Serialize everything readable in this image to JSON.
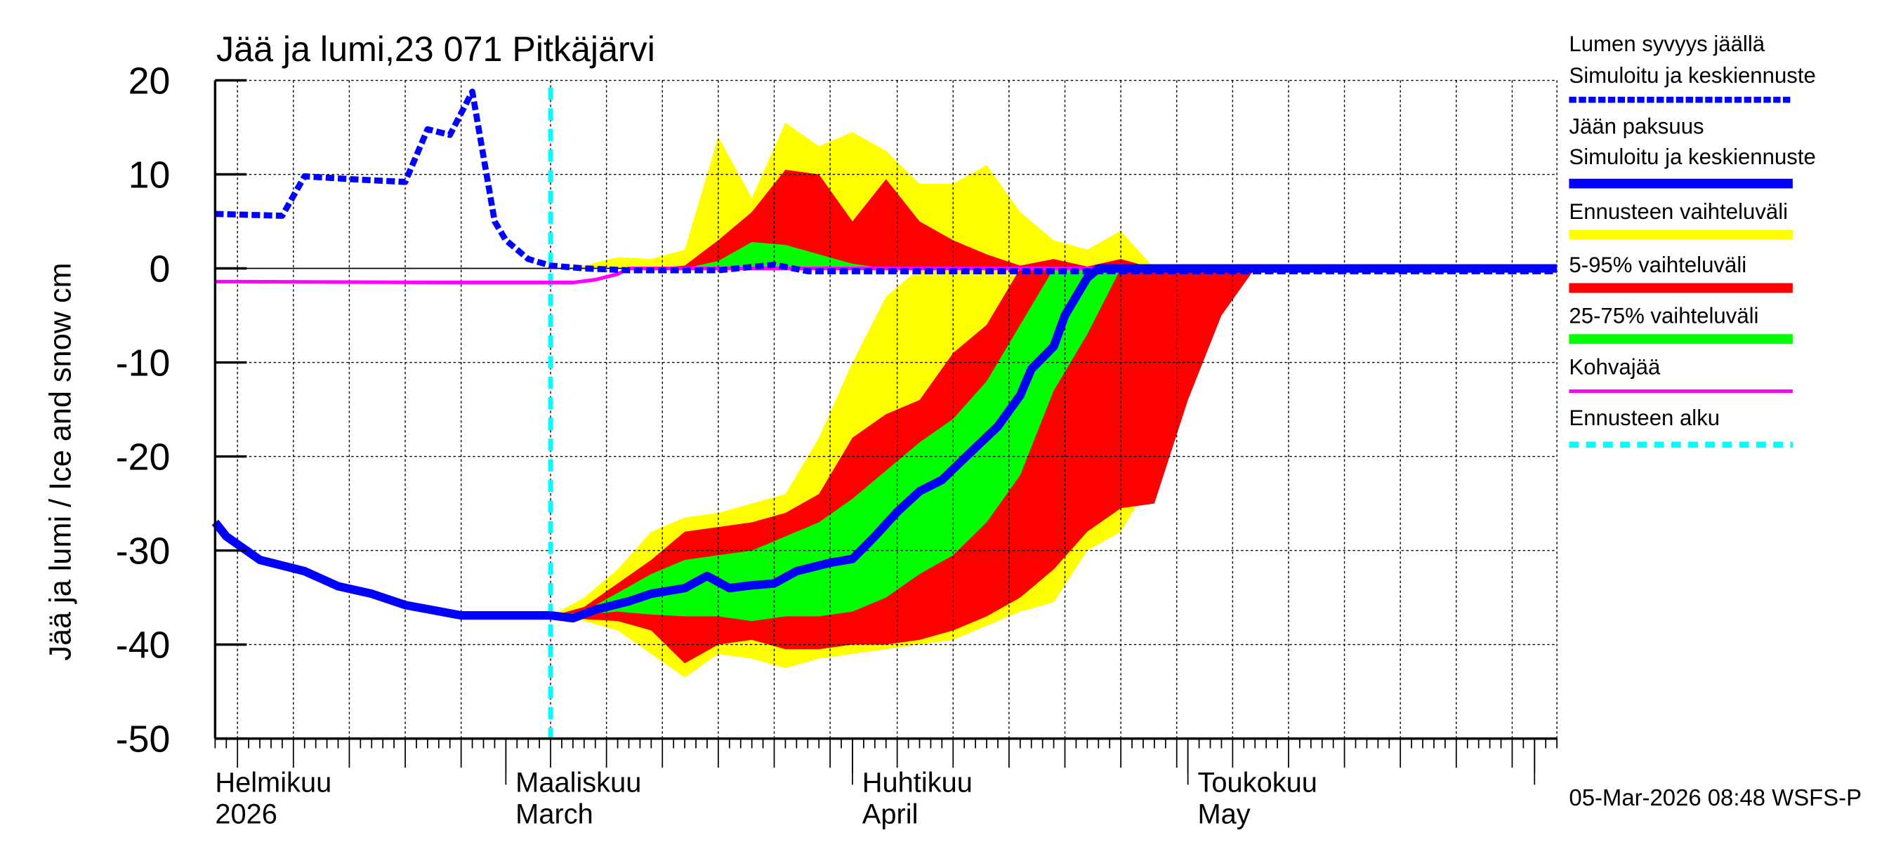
{
  "chart_data": {
    "type": "area",
    "title": "Jää ja lumi,23 071 Pitkäjärvi",
    "ylabel": "Jää ja lumi / Ice and snow    cm",
    "xlabel": "",
    "ylim": [
      -50,
      20
    ],
    "yticks": [
      20,
      10,
      0,
      -10,
      -20,
      -30,
      -40,
      -50
    ],
    "xlim": [
      "2026-02-03",
      "2026-06-03"
    ],
    "grid": true,
    "month_labels": [
      {
        "date": "2026-02-01",
        "fi": "Helmikuu",
        "en": "2026"
      },
      {
        "date": "2026-03-01",
        "fi": "Maaliskuu",
        "en": "March"
      },
      {
        "date": "2026-04-01",
        "fi": "Huhtikuu",
        "en": "April"
      },
      {
        "date": "2026-05-01",
        "fi": "Toukokuu",
        "en": "May"
      }
    ],
    "forecast_start": "2026-03-05",
    "colors": {
      "snow": "#0000ff",
      "ice": "#0000ff",
      "range": "#ffff00",
      "p5_95": "#ff0000",
      "p25_75": "#00ff00",
      "slush": "#ff00ff",
      "forecast_start": "#00ffff"
    },
    "forecast_dates": [
      "2026-03-05",
      "2026-03-08",
      "2026-03-11",
      "2026-03-14",
      "2026-03-17",
      "2026-03-20",
      "2026-03-23",
      "2026-03-26",
      "2026-03-29",
      "2026-04-01",
      "2026-04-04",
      "2026-04-07",
      "2026-04-10",
      "2026-04-13",
      "2026-04-16",
      "2026-04-19",
      "2026-04-22",
      "2026-04-25",
      "2026-04-28",
      "2026-05-01",
      "2026-05-04",
      "2026-05-07"
    ],
    "snow_bands": {
      "range_upper": [
        0,
        0.3,
        1.2,
        1,
        2,
        14,
        7.5,
        15.5,
        13,
        14.5,
        12.5,
        9,
        9,
        11,
        6,
        3,
        2,
        4,
        0,
        0,
        0,
        0
      ],
      "p5_95_upper": [
        0,
        0,
        0,
        0,
        0.3,
        3,
        6,
        10.5,
        10,
        5,
        9.5,
        5,
        3,
        1.5,
        0.3,
        1,
        0.2,
        1,
        0,
        0,
        0,
        0
      ],
      "p25_75_upper": [
        0,
        0,
        0,
        0,
        0,
        0.8,
        2.8,
        2.5,
        1.5,
        0.5,
        0,
        0,
        0,
        0,
        0,
        0,
        0,
        0,
        0,
        0,
        0,
        0
      ]
    },
    "ice_bands": {
      "range_upper": [
        -37,
        -35,
        -32,
        -28,
        -26.5,
        -26,
        -25,
        -24,
        -18,
        -10,
        -3,
        0,
        0,
        0,
        0,
        0,
        0,
        0,
        0,
        0,
        0,
        0
      ],
      "range_lower": [
        -37,
        -37.5,
        -38.5,
        -41,
        -43.5,
        -41,
        -41.5,
        -42.5,
        -41.5,
        -41,
        -40.5,
        -40,
        -39.5,
        -38,
        -36.5,
        -35.5,
        -30,
        -28,
        -22,
        -12,
        -4,
        0
      ],
      "p5_95_upper": [
        -37,
        -36,
        -33.5,
        -31,
        -28,
        -27.5,
        -27,
        -26,
        -24,
        -18,
        -15.5,
        -14,
        -9,
        -6,
        0,
        0,
        0,
        0,
        0,
        0,
        0,
        0
      ],
      "p5_95_lower": [
        -37,
        -37.3,
        -37.5,
        -38.5,
        -42,
        -40,
        -39.5,
        -40.5,
        -40.5,
        -40,
        -40,
        -39.5,
        -38.5,
        -37,
        -35,
        -32,
        -28,
        -25.5,
        -25,
        -14,
        -5,
        0
      ],
      "p25_75_upper": [
        -37,
        -36.5,
        -34.5,
        -32.5,
        -31,
        -30.5,
        -30,
        -28.5,
        -27,
        -24.5,
        -21.5,
        -18.5,
        -16,
        -12,
        -6,
        0,
        0,
        0,
        0,
        0,
        0,
        0
      ],
      "p25_75_lower": [
        -37,
        -36.8,
        -36.5,
        -36.8,
        -37,
        -37,
        -37.5,
        -37,
        -37,
        -36.5,
        -35,
        -32.5,
        -30.5,
        -27,
        -22,
        -13,
        -7,
        0,
        0,
        0,
        0,
        0
      ]
    },
    "series": [
      {
        "name": "Lumen syvyys jäällä",
        "style": "dashed",
        "x": [
          "2026-02-03",
          "2026-02-09",
          "2026-02-11",
          "2026-02-15",
          "2026-02-20",
          "2026-02-22",
          "2026-02-24",
          "2026-02-26",
          "2026-02-28",
          "2026-03-01",
          "2026-03-03",
          "2026-03-05",
          "2026-03-08",
          "2026-03-12",
          "2026-03-20",
          "2026-03-25",
          "2026-03-28",
          "2026-06-03"
        ],
        "y": [
          5.8,
          5.6,
          9.8,
          9.5,
          9.2,
          14.8,
          14.2,
          18.8,
          5,
          3,
          1,
          0.3,
          0,
          -0.2,
          -0.2,
          0.4,
          -0.3,
          -0.3
        ]
      },
      {
        "name": "Jään paksuus",
        "style": "solid",
        "x": [
          "2026-02-03",
          "2026-02-04",
          "2026-02-07",
          "2026-02-11",
          "2026-02-14",
          "2026-02-17",
          "2026-02-20",
          "2026-02-25",
          "2026-03-05",
          "2026-03-07",
          "2026-03-09",
          "2026-03-12",
          "2026-03-14",
          "2026-03-17",
          "2026-03-19",
          "2026-03-21",
          "2026-03-23",
          "2026-03-25",
          "2026-03-27",
          "2026-03-30",
          "2026-04-01",
          "2026-04-03",
          "2026-04-05",
          "2026-04-07",
          "2026-04-09",
          "2026-04-11",
          "2026-04-14",
          "2026-04-16",
          "2026-04-17",
          "2026-04-19",
          "2026-04-20",
          "2026-04-22",
          "2026-04-23",
          "2026-06-03"
        ],
        "y": [
          -27,
          -28.5,
          -31,
          -32.2,
          -33.8,
          -34.6,
          -35.8,
          -36.9,
          -36.9,
          -37.2,
          -36.3,
          -35.4,
          -34.6,
          -34,
          -32.7,
          -34,
          -33.7,
          -33.5,
          -32.2,
          -31.3,
          -30.9,
          -28.5,
          -25.9,
          -23.7,
          -22.5,
          -20.2,
          -16.8,
          -13.5,
          -10.7,
          -8.3,
          -5,
          -1,
          0,
          0
        ]
      },
      {
        "name": "Kohvajää",
        "style": "solid",
        "x": [
          "2026-02-03",
          "2026-02-25",
          "2026-03-07",
          "2026-03-09",
          "2026-03-11",
          "2026-03-12",
          "2026-06-03"
        ],
        "y": [
          -1.4,
          -1.5,
          -1.5,
          -1.2,
          -0.6,
          0,
          0
        ]
      }
    ],
    "legend": {
      "placement": "right",
      "items": [
        {
          "line1": "Lumen syvyys jäällä",
          "line2": "Simuloitu ja keskiennuste"
        },
        {
          "line1": "Jään paksuus",
          "line2": "Simuloitu ja keskiennuste"
        },
        {
          "line1": "Ennusteen vaihteluväli"
        },
        {
          "line1": "5-95% vaihteluväli"
        },
        {
          "line1": "25-75% vaihteluväli"
        },
        {
          "line1": "Kohvajää"
        },
        {
          "line1": "Ennusteen alku"
        }
      ]
    },
    "footer": "05-Mar-2026 08:48 WSFS-P"
  }
}
